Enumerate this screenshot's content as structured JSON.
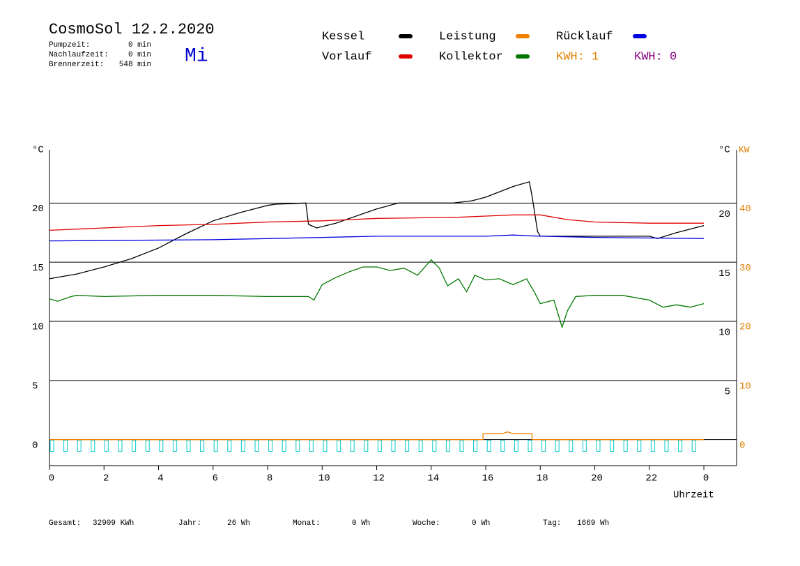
{
  "chart_data": {
    "type": "line",
    "title": "CosmoSol 12.2.2020",
    "weekday": "Mi",
    "info": [
      {
        "label": "Pumpzeit:",
        "value": "0 min"
      },
      {
        "label": "Nachlaufzeit:",
        "value": "0 min"
      },
      {
        "label": "Brennerzeit:",
        "value": "548 min"
      }
    ],
    "kwh_labels": [
      "KWH: 1",
      "KWH: 0"
    ],
    "y_label": "°C",
    "y2_label": "KW",
    "x_label": "Uhrzeit",
    "xlim": [
      0,
      25.2
    ],
    "xticks": [
      0,
      2,
      4,
      6,
      8,
      10,
      12,
      14,
      16,
      18,
      20,
      22,
      {
        "value": 24,
        "label": "0"
      }
    ],
    "ylim": [
      -2.2,
      24.5
    ],
    "yticks": [
      0,
      5,
      10,
      15,
      20
    ],
    "y_right_ticks": [
      5,
      10,
      15,
      20
    ],
    "y2lim": [
      -4.4,
      49
    ],
    "y2ticks": [
      0,
      10,
      20,
      30,
      40
    ],
    "grid": true,
    "series": [
      {
        "name": "Kessel",
        "color": "#000000",
        "x": [
          0,
          1,
          2,
          3,
          4,
          5,
          6,
          7,
          8,
          8.3,
          9.4,
          9.5,
          9.8,
          10.5,
          11,
          12,
          12.8,
          14.8,
          15.5,
          16,
          17,
          17.6,
          17.7,
          17.9,
          18,
          20,
          22,
          22.3,
          23,
          24
        ],
        "values": [
          13.6,
          14.0,
          14.6,
          15.3,
          16.2,
          17.4,
          18.5,
          19.2,
          19.8,
          19.9,
          20.0,
          18.2,
          17.9,
          18.3,
          18.7,
          19.5,
          20.0,
          20.0,
          20.2,
          20.5,
          21.4,
          21.8,
          20.6,
          17.6,
          17.2,
          17.2,
          17.2,
          17.0,
          17.5,
          18.1
        ]
      },
      {
        "name": "Vorlauf",
        "color": "#e00000",
        "x": [
          0,
          2,
          4,
          6,
          8,
          10,
          12,
          15,
          16,
          17,
          18,
          19,
          20,
          22,
          24
        ],
        "values": [
          17.7,
          17.9,
          18.1,
          18.2,
          18.4,
          18.5,
          18.7,
          18.8,
          18.9,
          19.0,
          19.0,
          18.6,
          18.4,
          18.3,
          18.3
        ]
      },
      {
        "name": "Leistung",
        "color": "#f08000",
        "axis": "y2",
        "x": [
          0,
          15.9,
          15.9,
          16.6,
          16.8,
          17,
          17.7,
          17.7,
          24
        ],
        "values": [
          0,
          0,
          1,
          1,
          1.3,
          1,
          1,
          0,
          0
        ]
      },
      {
        "name": "Kollektor",
        "color": "#007800",
        "x": [
          0,
          0.3,
          0.8,
          1,
          2,
          4,
          6,
          8,
          9.5,
          9.7,
          10,
          10.5,
          11,
          11.5,
          12,
          12.5,
          13,
          13.5,
          14,
          14.3,
          14.6,
          15,
          15.3,
          15.6,
          16,
          16.5,
          17,
          17.5,
          17.8,
          18,
          18.5,
          18.8,
          19,
          19.3,
          20,
          21,
          22,
          22.5,
          23,
          23.5,
          24
        ],
        "values": [
          11.9,
          11.7,
          12.1,
          12.2,
          12.1,
          12.2,
          12.2,
          12.1,
          12.1,
          11.8,
          13.1,
          13.7,
          14.2,
          14.6,
          14.6,
          14.3,
          14.5,
          13.9,
          15.2,
          14.5,
          13.0,
          13.6,
          12.5,
          13.9,
          13.5,
          13.6,
          13.1,
          13.6,
          12.4,
          11.5,
          11.8,
          9.5,
          10.9,
          12.1,
          12.2,
          12.2,
          11.8,
          11.2,
          11.4,
          11.2,
          11.5
        ]
      },
      {
        "name": "Rücklauf",
        "color": "#0000e0",
        "x": [
          0,
          6,
          10,
          12,
          16,
          17,
          18,
          20,
          24
        ],
        "values": [
          16.8,
          16.9,
          17.1,
          17.2,
          17.2,
          17.3,
          17.2,
          17.1,
          17.0
        ]
      }
    ],
    "footer": [
      {
        "label": "Gesamt:",
        "value": "32909 KWh"
      },
      {
        "label": "Jahr:",
        "value": "26 Wh"
      },
      {
        "label": "Monat:",
        "value": "0 Wh"
      },
      {
        "label": "Woche:",
        "value": "0 Wh"
      },
      {
        "label": "Tag:",
        "value": "1669 Wh"
      }
    ]
  }
}
